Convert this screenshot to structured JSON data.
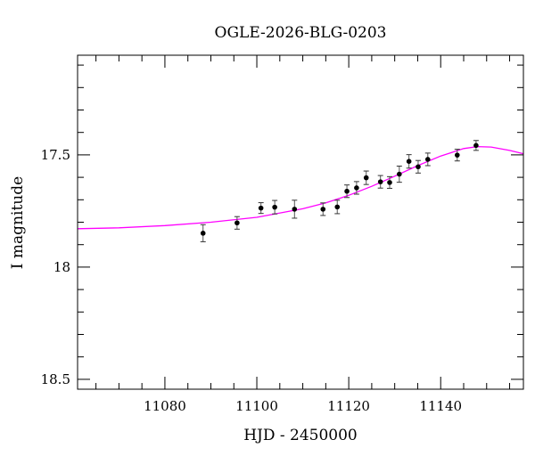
{
  "chart_data": {
    "type": "scatter",
    "title": "OGLE-2026-BLG-0203",
    "xlabel": "HJD - 2450000",
    "ylabel": "I magnitude",
    "xlim": [
      11061,
      11158
    ],
    "ylim": [
      18.544,
      17.056
    ],
    "y_inverted": true,
    "x_ticks": [
      11080,
      11100,
      11120,
      11140
    ],
    "x_tick_labels": [
      "11080",
      "11100",
      "11120",
      "11140"
    ],
    "y_ticks": [
      17.5,
      18,
      18.5
    ],
    "y_tick_labels": [
      "17.5",
      "18",
      "18.5"
    ],
    "grid": false,
    "colors": {
      "data": "#000000",
      "model": "#ff00ff"
    },
    "data_points": [
      {
        "x": 11088.3,
        "y": 17.849,
        "err": 0.038
      },
      {
        "x": 11095.7,
        "y": 17.803,
        "err": 0.028
      },
      {
        "x": 11100.9,
        "y": 17.737,
        "err": 0.024
      },
      {
        "x": 11103.9,
        "y": 17.733,
        "err": 0.03
      },
      {
        "x": 11108.2,
        "y": 17.742,
        "err": 0.04
      },
      {
        "x": 11114.4,
        "y": 17.742,
        "err": 0.028
      },
      {
        "x": 11117.5,
        "y": 17.732,
        "err": 0.03
      },
      {
        "x": 11119.6,
        "y": 17.662,
        "err": 0.028
      },
      {
        "x": 11121.7,
        "y": 17.647,
        "err": 0.028
      },
      {
        "x": 11123.8,
        "y": 17.602,
        "err": 0.03
      },
      {
        "x": 11126.9,
        "y": 17.62,
        "err": 0.028
      },
      {
        "x": 11128.9,
        "y": 17.623,
        "err": 0.026
      },
      {
        "x": 11131.0,
        "y": 17.586,
        "err": 0.036
      },
      {
        "x": 11133.1,
        "y": 17.529,
        "err": 0.03
      },
      {
        "x": 11135.1,
        "y": 17.553,
        "err": 0.028
      },
      {
        "x": 11137.2,
        "y": 17.52,
        "err": 0.028
      },
      {
        "x": 11143.6,
        "y": 17.501,
        "err": 0.026
      },
      {
        "x": 11147.7,
        "y": 17.458,
        "err": 0.022
      }
    ],
    "model_curve": [
      [
        11061,
        17.829
      ],
      [
        11070,
        17.825
      ],
      [
        11080,
        17.815
      ],
      [
        11090,
        17.8
      ],
      [
        11100,
        17.778
      ],
      [
        11110,
        17.74
      ],
      [
        11115,
        17.714
      ],
      [
        11120,
        17.68
      ],
      [
        11125,
        17.64
      ],
      [
        11130,
        17.595
      ],
      [
        11135,
        17.548
      ],
      [
        11140,
        17.505
      ],
      [
        11145,
        17.472
      ],
      [
        11148,
        17.463
      ],
      [
        11151,
        17.465
      ],
      [
        11155,
        17.48
      ],
      [
        11158,
        17.495
      ]
    ]
  }
}
